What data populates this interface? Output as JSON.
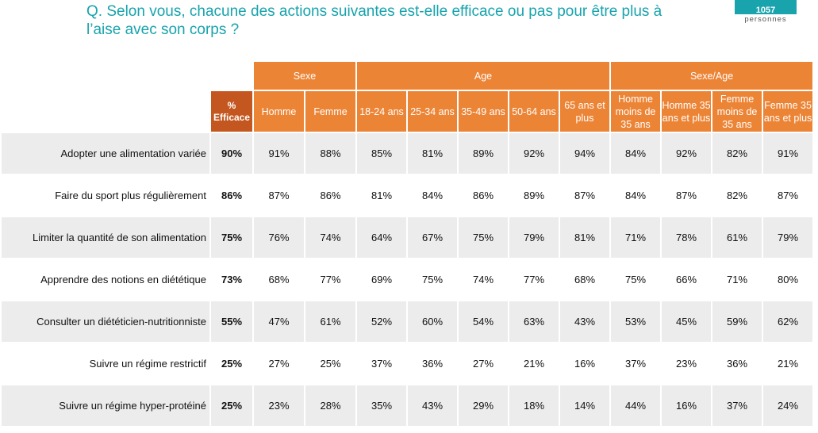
{
  "header": {
    "question": "Q. Selon vous, chacune des actions suivantes est-elle efficace ou pas pour être plus à l’aise avec son corps ?",
    "sample_size": "1057",
    "sample_unit": "personnes"
  },
  "table": {
    "groups": [
      "Sexe",
      "Age",
      "Sexe/Age"
    ],
    "total_header": "% Efficace",
    "columns": [
      "Homme",
      "Femme",
      "18-24 ans",
      "25-34 ans",
      "35-49 ans",
      "50-64 ans",
      "65 ans et plus",
      "Homme moins de 35 ans",
      "Homme 35 ans et plus",
      "Femme moins de 35 ans",
      "Femme 35 ans et plus"
    ],
    "rows": [
      {
        "label": "Adopter une alimentation variée",
        "total": "90%",
        "values": [
          "91%",
          "88%",
          "85%",
          "81%",
          "89%",
          "92%",
          "94%",
          "84%",
          "92%",
          "82%",
          "91%"
        ]
      },
      {
        "label": "Faire du sport plus régulièrement",
        "total": "86%",
        "values": [
          "87%",
          "86%",
          "81%",
          "84%",
          "86%",
          "89%",
          "87%",
          "84%",
          "87%",
          "82%",
          "87%"
        ]
      },
      {
        "label": "Limiter la quantité de son alimentation",
        "total": "75%",
        "values": [
          "76%",
          "74%",
          "64%",
          "67%",
          "75%",
          "79%",
          "81%",
          "71%",
          "78%",
          "61%",
          "79%"
        ]
      },
      {
        "label": "Apprendre des notions en diététique",
        "total": "73%",
        "values": [
          "68%",
          "77%",
          "69%",
          "75%",
          "74%",
          "77%",
          "68%",
          "75%",
          "66%",
          "71%",
          "80%"
        ]
      },
      {
        "label": "Consulter un diététicien-nutritionniste",
        "total": "55%",
        "values": [
          "47%",
          "61%",
          "52%",
          "60%",
          "54%",
          "63%",
          "43%",
          "53%",
          "45%",
          "59%",
          "62%"
        ]
      },
      {
        "label": "Suivre un régime restrictif",
        "total": "25%",
        "values": [
          "27%",
          "25%",
          "37%",
          "36%",
          "27%",
          "21%",
          "16%",
          "37%",
          "23%",
          "36%",
          "21%"
        ]
      },
      {
        "label": "Suivre un régime hyper-protéiné",
        "total": "25%",
        "values": [
          "23%",
          "28%",
          "35%",
          "43%",
          "29%",
          "18%",
          "14%",
          "44%",
          "16%",
          "37%",
          "24%"
        ]
      }
    ]
  },
  "colors": {
    "title": "#18a3ad",
    "header_orange": "#ec8436",
    "header_dark_orange": "#c4571f",
    "row_shade": "#ececec"
  }
}
